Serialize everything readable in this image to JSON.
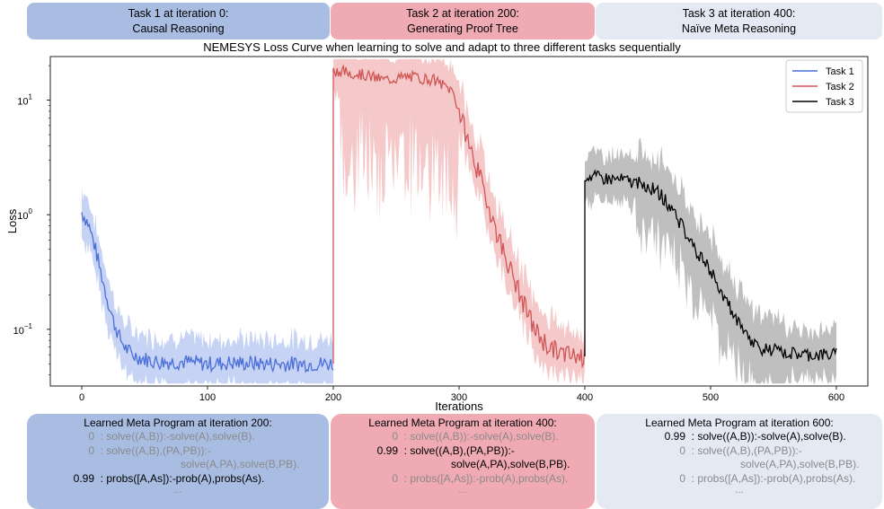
{
  "task_boxes": [
    {
      "line1": "Task 1 at iteration 0:",
      "line2": "Causal Reasoning"
    },
    {
      "line1": "Task 2 at iteration 200:",
      "line2": "Generating Proof Tree"
    },
    {
      "line1": "Task 3 at iteration 400:",
      "line2": "Naïve Meta Reasoning"
    }
  ],
  "chart_data": {
    "type": "line",
    "title": "NEMESYS Loss Curve when learning to solve and adapt to three different tasks sequentially",
    "xlabel": "Iterations",
    "ylabel": "Loss",
    "xlim": [
      -25,
      625
    ],
    "ylim": [
      0.032,
      24
    ],
    "yscale": "log",
    "xticks": [
      0,
      100,
      200,
      300,
      400,
      500,
      600
    ],
    "yticks": [
      {
        "value": 0.1,
        "base": "10",
        "exp": "−1"
      },
      {
        "value": 1,
        "base": "10",
        "exp": "0"
      },
      {
        "value": 10,
        "base": "10",
        "exp": "1"
      }
    ],
    "legend_position": "top-right",
    "grid": false,
    "series": [
      {
        "name": "Task 1",
        "color": "#4a6fd8",
        "x": [
          0,
          5,
          10,
          15,
          20,
          25,
          30,
          35,
          40,
          50,
          60,
          80,
          100,
          120,
          150,
          180,
          200
        ],
        "y": [
          1.05,
          0.85,
          0.55,
          0.32,
          0.19,
          0.12,
          0.085,
          0.068,
          0.06,
          0.055,
          0.052,
          0.052,
          0.05,
          0.051,
          0.05,
          0.05,
          0.05
        ]
      },
      {
        "name": "Task 2",
        "color": "#d05555",
        "x": [
          200,
          205,
          220,
          240,
          260,
          280,
          295,
          300,
          310,
          320,
          330,
          340,
          350,
          360,
          370,
          380,
          390,
          400
        ],
        "y": [
          18,
          18,
          17,
          15,
          16,
          15,
          12,
          8,
          3.5,
          1.6,
          0.7,
          0.35,
          0.18,
          0.1,
          0.072,
          0.062,
          0.058,
          0.058
        ]
      },
      {
        "name": "Task 3",
        "color": "#000000",
        "x": [
          400,
          410,
          430,
          450,
          460,
          470,
          480,
          490,
          500,
          510,
          520,
          530,
          540,
          560,
          580,
          600
        ],
        "y": [
          2.2,
          2.1,
          2.0,
          1.8,
          1.5,
          1.1,
          0.7,
          0.45,
          0.32,
          0.2,
          0.12,
          0.082,
          0.068,
          0.062,
          0.06,
          0.06
        ]
      }
    ]
  },
  "programs": [
    {
      "title": "Learned Meta Program at iteration 200:",
      "rules": [
        {
          "weight": "0",
          "text": ": solve((A,B)):-solve(A),solve(B).",
          "cont": "",
          "active": false
        },
        {
          "weight": "0",
          "text": ": solve((A,B),(PA,PB)):-",
          "cont": "solve(A,PA),solve(B,PB).",
          "active": false
        },
        {
          "weight": "0.99",
          "text": ": probs([A,As]):-prob(A),probs(As).",
          "cont": "",
          "active": true
        }
      ],
      "ellipsis": "..."
    },
    {
      "title": "Learned Meta Program at iteration 400:",
      "rules": [
        {
          "weight": "0",
          "text": ": solve((A,B)):-solve(A),solve(B).",
          "cont": "",
          "active": false
        },
        {
          "weight": "0.99",
          "text": ": solve((A,B),(PA,PB)):-",
          "cont": "solve(A,PA),solve(B,PB).",
          "active": true
        },
        {
          "weight": "0",
          "text": ": probs([A,As]):-prob(A),probs(As).",
          "cont": "",
          "active": false
        }
      ],
      "ellipsis": "..."
    },
    {
      "title": "Learned Meta Program at iteration 600:",
      "rules": [
        {
          "weight": "0.99",
          "text": ": solve((A,B)):-solve(A),solve(B).",
          "cont": "",
          "active": true
        },
        {
          "weight": "0",
          "text": ": solve((A,B),(PA,PB)):-",
          "cont": "solve(A,PA),solve(B,PB).",
          "active": false
        },
        {
          "weight": "0",
          "text": ": probs([A,As]):-prob(A),probs(As).",
          "cont": "",
          "active": false
        }
      ],
      "ellipsis": "..."
    }
  ]
}
